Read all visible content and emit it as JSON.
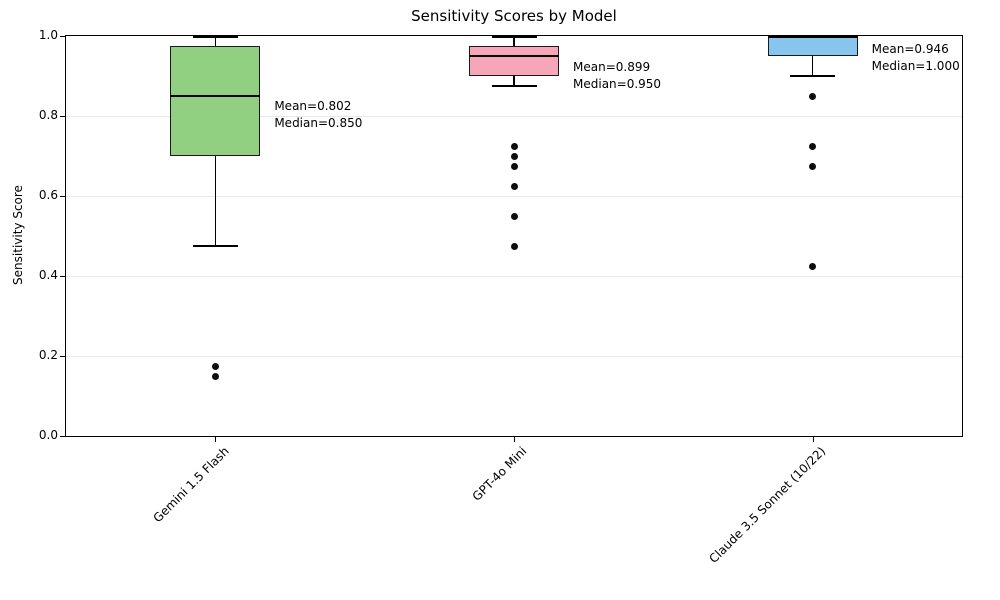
{
  "chart_data": {
    "type": "box",
    "title": "Sensitivity Scores by Model",
    "xlabel": "",
    "ylabel": "Sensitivity Score",
    "ylim": [
      0.0,
      1.0
    ],
    "yticks": [
      0.0,
      0.2,
      0.4,
      0.6,
      0.8,
      1.0
    ],
    "ytick_labels": [
      "0.0",
      "0.2",
      "0.4",
      "0.6",
      "0.8",
      "1.0"
    ],
    "grid": "horizontal",
    "legend": "none",
    "categories": [
      "Gemini 1.5 Flash",
      "GPT-4o Mini",
      "Claude 3.5 Sonnet (10/22)"
    ],
    "series": [
      {
        "name": "Gemini 1.5 Flash",
        "box_color": "#92d081",
        "whisker_low": 0.475,
        "q1": 0.7,
        "median": 0.85,
        "q3": 0.975,
        "whisker_high": 1.0,
        "mean": 0.802,
        "outliers": [
          0.175,
          0.15
        ],
        "annotation": {
          "mean_label": "Mean=0.802",
          "median_label": "Median=0.850"
        }
      },
      {
        "name": "GPT-4o Mini",
        "box_color": "#f7a5b8",
        "whisker_low": 0.875,
        "q1": 0.9,
        "median": 0.95,
        "q3": 0.975,
        "whisker_high": 1.0,
        "mean": 0.899,
        "outliers": [
          0.725,
          0.7,
          0.675,
          0.625,
          0.55,
          0.475
        ],
        "annotation": {
          "mean_label": "Mean=0.899",
          "median_label": "Median=0.950"
        }
      },
      {
        "name": "Claude 3.5 Sonnet (10/22)",
        "box_color": "#87c5ef",
        "whisker_low": 0.9,
        "q1": 0.95,
        "median": 1.0,
        "q3": 1.0,
        "whisker_high": 1.0,
        "mean": 0.946,
        "outliers": [
          0.85,
          0.725,
          0.675,
          0.425
        ],
        "annotation": {
          "mean_label": "Mean=0.946",
          "median_label": "Median=1.000"
        }
      }
    ]
  }
}
